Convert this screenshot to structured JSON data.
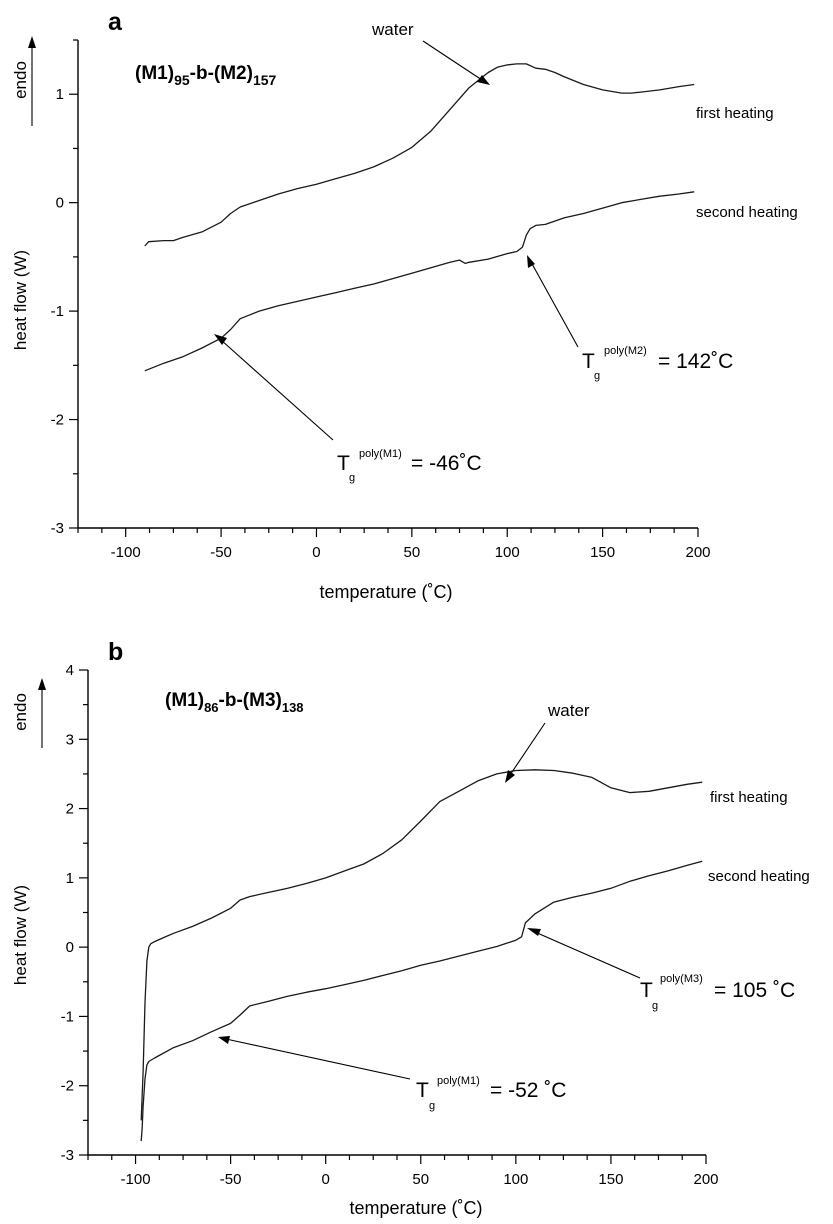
{
  "chart_data": [
    {
      "type": "line",
      "panel_label": "a",
      "title_main": "(M1)",
      "title_sub1": "95",
      "title_mid": "-b-(M2)",
      "title_sub2": "157",
      "xlabel": "temperature (˚C)",
      "ylabel": "heat flow (W)",
      "endo_label": "endo",
      "xlim": [
        -125,
        200
      ],
      "ylim": [
        -3,
        1.5
      ],
      "xticks": [
        -100,
        -50,
        0,
        50,
        100,
        150,
        200
      ],
      "yticks": [
        -3,
        -2,
        -1,
        0,
        1
      ],
      "grid": false,
      "series": [
        {
          "name": "first heating",
          "x": [
            -90,
            -88,
            -80,
            -75,
            -70,
            -60,
            -50,
            -45,
            -40,
            -30,
            -20,
            -10,
            0,
            10,
            20,
            30,
            40,
            50,
            60,
            70,
            80,
            90,
            95,
            100,
            105,
            110,
            115,
            120,
            125,
            130,
            140,
            150,
            160,
            165,
            170,
            180,
            190,
            198
          ],
          "y": [
            -0.4,
            -0.36,
            -0.35,
            -0.35,
            -0.32,
            -0.27,
            -0.18,
            -0.1,
            -0.04,
            0.02,
            0.08,
            0.13,
            0.17,
            0.22,
            0.27,
            0.33,
            0.41,
            0.51,
            0.66,
            0.86,
            1.06,
            1.2,
            1.25,
            1.27,
            1.28,
            1.28,
            1.24,
            1.23,
            1.2,
            1.16,
            1.09,
            1.04,
            1.01,
            1.01,
            1.02,
            1.04,
            1.07,
            1.09
          ]
        },
        {
          "name": "second heating",
          "x": [
            -90,
            -80,
            -70,
            -60,
            -50,
            -45,
            -40,
            -30,
            -20,
            -10,
            0,
            10,
            20,
            30,
            40,
            50,
            60,
            70,
            75,
            78,
            80,
            90,
            100,
            105,
            108,
            110,
            112,
            115,
            120,
            130,
            140,
            150,
            160,
            170,
            180,
            190,
            198
          ],
          "y": [
            -1.55,
            -1.48,
            -1.42,
            -1.34,
            -1.25,
            -1.17,
            -1.07,
            -1.0,
            -0.95,
            -0.91,
            -0.87,
            -0.83,
            -0.79,
            -0.75,
            -0.7,
            -0.65,
            -0.6,
            -0.55,
            -0.53,
            -0.56,
            -0.55,
            -0.52,
            -0.47,
            -0.45,
            -0.41,
            -0.3,
            -0.24,
            -0.21,
            -0.2,
            -0.14,
            -0.1,
            -0.05,
            0.0,
            0.03,
            0.06,
            0.08,
            0.1
          ]
        }
      ],
      "annotations": {
        "water": "water",
        "tg_low": {
          "T": "T",
          "g": "g",
          "sup": "poly(M1)",
          "value": "= -46˚C"
        },
        "tg_high": {
          "T": "T",
          "g": "g",
          "sup": "poly(M2)",
          "value": "= 142˚C"
        }
      }
    },
    {
      "type": "line",
      "panel_label": "b",
      "title_main": "(M1)",
      "title_sub1": "86",
      "title_mid": "-b-(M3)",
      "title_sub2": "138",
      "xlabel": "temperature (˚C)",
      "ylabel": "heat flow (W)",
      "endo_label": "endo",
      "xlim": [
        -125,
        200
      ],
      "ylim": [
        -3,
        4
      ],
      "xticks": [
        -100,
        -50,
        0,
        50,
        100,
        150,
        200
      ],
      "yticks": [
        -3,
        -2,
        -1,
        0,
        1,
        2,
        3,
        4
      ],
      "grid": false,
      "series": [
        {
          "name": "first heating",
          "x": [
            -97,
            -96,
            -95,
            -94,
            -93,
            -92,
            -90,
            -85,
            -80,
            -70,
            -60,
            -50,
            -45,
            -40,
            -30,
            -20,
            -10,
            0,
            10,
            20,
            30,
            40,
            50,
            60,
            70,
            80,
            90,
            100,
            110,
            120,
            130,
            140,
            150,
            160,
            170,
            180,
            190,
            198
          ],
          "y": [
            -2.5,
            -1.8,
            -0.8,
            -0.2,
            0.0,
            0.05,
            0.08,
            0.14,
            0.2,
            0.3,
            0.42,
            0.56,
            0.68,
            0.73,
            0.79,
            0.85,
            0.92,
            1.0,
            1.1,
            1.2,
            1.35,
            1.55,
            1.82,
            2.1,
            2.25,
            2.4,
            2.5,
            2.55,
            2.56,
            2.55,
            2.51,
            2.45,
            2.3,
            2.23,
            2.25,
            2.3,
            2.35,
            2.38
          ]
        },
        {
          "name": "second heating",
          "x": [
            -97,
            -96.5,
            -96,
            -95,
            -94,
            -93,
            -90,
            -80,
            -70,
            -60,
            -50,
            -45,
            -40,
            -30,
            -20,
            -10,
            0,
            10,
            20,
            30,
            40,
            50,
            60,
            70,
            80,
            90,
            100,
            103,
            105,
            110,
            120,
            130,
            140,
            150,
            160,
            170,
            180,
            190,
            198
          ],
          "y": [
            -2.8,
            -2.6,
            -2.3,
            -1.9,
            -1.7,
            -1.65,
            -1.6,
            -1.45,
            -1.35,
            -1.22,
            -1.1,
            -0.98,
            -0.85,
            -0.78,
            -0.71,
            -0.65,
            -0.6,
            -0.54,
            -0.48,
            -0.41,
            -0.34,
            -0.26,
            -0.2,
            -0.13,
            -0.06,
            0.01,
            0.1,
            0.15,
            0.35,
            0.48,
            0.65,
            0.72,
            0.78,
            0.85,
            0.95,
            1.03,
            1.1,
            1.18,
            1.24
          ]
        }
      ],
      "annotations": {
        "water": "water",
        "tg_low": {
          "T": "T",
          "g": "g",
          "sup": "poly(M1)",
          "value": "= -52 ˚C"
        },
        "tg_high": {
          "T": "T",
          "g": "g",
          "sup": "poly(M3)",
          "value": "= 105 ˚C"
        }
      }
    }
  ]
}
